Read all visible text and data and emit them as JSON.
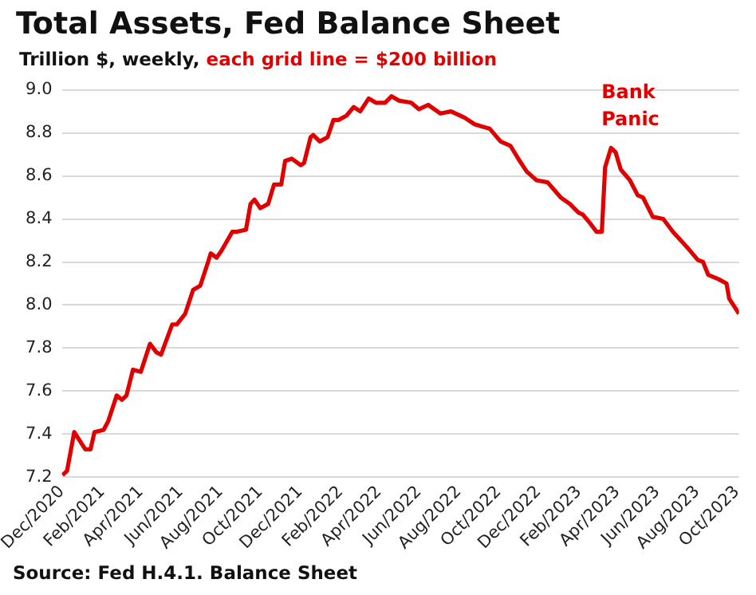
{
  "chart_data": {
    "type": "line",
    "title": "Total Assets, Fed Balance Sheet",
    "subtitle": "Trillion $, weekly,",
    "annotations": [
      "each grid line = $200 billion",
      {
        "text": "Bank Panic",
        "x": "2023-03-22",
        "y": 8.73
      },
      "Source: Fed H.4.1. Balance Sheet"
    ],
    "x": [
      "2020-12-02",
      "2020-12-09",
      "2020-12-20",
      "2021-01-06",
      "2021-01-14",
      "2021-01-20",
      "2021-02-03",
      "2021-02-10",
      "2021-02-23",
      "2021-03-03",
      "2021-03-10",
      "2021-03-20",
      "2021-04-01",
      "2021-04-15",
      "2021-04-25",
      "2021-05-02",
      "2021-05-19",
      "2021-05-26",
      "2021-06-08",
      "2021-06-20",
      "2021-07-01",
      "2021-07-13",
      "2021-07-17",
      "2021-07-26",
      "2021-08-02",
      "2021-08-19",
      "2021-08-25",
      "2021-09-09",
      "2021-09-16",
      "2021-09-22",
      "2021-10-01",
      "2021-10-13",
      "2021-10-22",
      "2021-11-02",
      "2021-11-08",
      "2021-11-18",
      "2021-12-02",
      "2021-12-07",
      "2021-12-17",
      "2021-12-21",
      "2021-12-31",
      "2022-01-12",
      "2022-01-21",
      "2022-01-29",
      "2022-02-10",
      "2022-02-21",
      "2022-03-03",
      "2022-03-16",
      "2022-03-27",
      "2022-04-10",
      "2022-04-20",
      "2022-05-01",
      "2022-05-20",
      "2022-06-01",
      "2022-06-15",
      "2022-07-04",
      "2022-07-20",
      "2022-08-10",
      "2022-08-25",
      "2022-09-05",
      "2022-09-17",
      "2022-10-04",
      "2022-10-19",
      "2022-10-31",
      "2022-11-13",
      "2022-11-28",
      "2022-12-15",
      "2023-01-04",
      "2023-01-18",
      "2023-01-31",
      "2023-02-07",
      "2023-02-18",
      "2023-02-28",
      "2023-03-08",
      "2023-03-13",
      "2023-03-22",
      "2023-03-29",
      "2023-04-06",
      "2023-04-20",
      "2023-05-02",
      "2023-05-10",
      "2023-05-25",
      "2023-06-10",
      "2023-06-25",
      "2023-07-07",
      "2023-07-19",
      "2023-08-02",
      "2023-08-10",
      "2023-08-18",
      "2023-09-03",
      "2023-09-15",
      "2023-09-19",
      "2023-10-04"
    ],
    "series": [
      {
        "color": "#e00000",
        "values": [
          7.21,
          7.23,
          7.41,
          7.33,
          7.33,
          7.41,
          7.42,
          7.46,
          7.58,
          7.56,
          7.58,
          7.7,
          7.69,
          7.82,
          7.78,
          7.77,
          7.91,
          7.91,
          7.96,
          8.07,
          8.09,
          8.2,
          8.24,
          8.22,
          8.25,
          8.34,
          8.34,
          8.35,
          8.47,
          8.49,
          8.45,
          8.47,
          8.56,
          8.56,
          8.67,
          8.68,
          8.65,
          8.66,
          8.78,
          8.79,
          8.76,
          8.78,
          8.86,
          8.86,
          8.88,
          8.92,
          8.9,
          8.96,
          8.94,
          8.94,
          8.97,
          8.95,
          8.94,
          8.91,
          8.93,
          8.89,
          8.9,
          8.87,
          8.84,
          8.83,
          8.82,
          8.76,
          8.74,
          8.68,
          8.62,
          8.58,
          8.57,
          8.5,
          8.47,
          8.43,
          8.42,
          8.38,
          8.34,
          8.34,
          8.64,
          8.73,
          8.71,
          8.63,
          8.58,
          8.51,
          8.5,
          8.41,
          8.4,
          8.34,
          8.3,
          8.26,
          8.21,
          8.2,
          8.14,
          8.12,
          8.1,
          8.03,
          7.96
        ]
      }
    ],
    "xlim": [
      "2020-12-01",
      "2023-10-04"
    ],
    "xticks": [
      {
        "value": "2020-12-01",
        "label": "Dec/2020"
      },
      {
        "value": "2021-02-01",
        "label": "Feb/2021"
      },
      {
        "value": "2021-04-01",
        "label": "Apr/2021"
      },
      {
        "value": "2021-06-01",
        "label": "Jun/2021"
      },
      {
        "value": "2021-08-01",
        "label": "Aug/2021"
      },
      {
        "value": "2021-10-01",
        "label": "Oct/2021"
      },
      {
        "value": "2021-12-01",
        "label": "Dec/2021"
      },
      {
        "value": "2022-02-01",
        "label": "Feb/2022"
      },
      {
        "value": "2022-04-01",
        "label": "Apr/2022"
      },
      {
        "value": "2022-06-01",
        "label": "Jun/2022"
      },
      {
        "value": "2022-08-01",
        "label": "Aug/2022"
      },
      {
        "value": "2022-10-01",
        "label": "Oct/2022"
      },
      {
        "value": "2022-12-01",
        "label": "Dec/2022"
      },
      {
        "value": "2023-02-01",
        "label": "Feb/2023"
      },
      {
        "value": "2023-04-01",
        "label": "Apr/2023"
      },
      {
        "value": "2023-06-01",
        "label": "Jun/2023"
      },
      {
        "value": "2023-08-01",
        "label": "Aug/2023"
      },
      {
        "value": "2023-10-01",
        "label": "Oct/2023"
      }
    ],
    "ylim": [
      7.2,
      9.0
    ],
    "yticks": [
      {
        "value": 7.2,
        "label": "7.2"
      },
      {
        "value": 7.4,
        "label": "7.4"
      },
      {
        "value": 7.6,
        "label": "7.6"
      },
      {
        "value": 7.8,
        "label": "7.8"
      },
      {
        "value": 8.0,
        "label": "8.0"
      },
      {
        "value": 8.2,
        "label": "8.2"
      },
      {
        "value": 8.4,
        "label": "8.4"
      },
      {
        "value": 8.6,
        "label": "8.6"
      },
      {
        "value": 8.8,
        "label": "8.8"
      },
      {
        "value": 9.0,
        "label": "9.0"
      }
    ],
    "grid": "y",
    "legend": false,
    "marker": "none",
    "line_style": "solid"
  }
}
